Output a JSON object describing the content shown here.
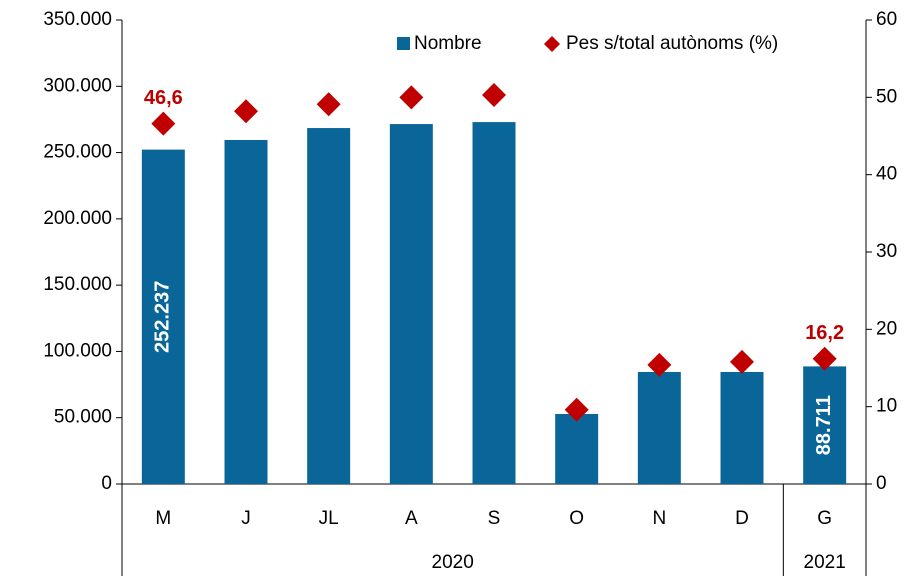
{
  "chart_data": {
    "type": "bar_diamond",
    "categories": [
      "M",
      "J",
      "JL",
      "A",
      "S",
      "O",
      "N",
      "D",
      "G"
    ],
    "groups": [
      "2020",
      "2020",
      "2020",
      "2020",
      "2020",
      "2020",
      "2020",
      "2020",
      "2021"
    ],
    "series": [
      {
        "name": "Nombre",
        "color": "#0a6698",
        "values": [
          252237,
          259500,
          268500,
          271500,
          273000,
          52800,
          84500,
          84500,
          88711
        ],
        "value_labels": [
          "252.237",
          null,
          null,
          null,
          null,
          null,
          null,
          null,
          "88.711"
        ]
      },
      {
        "name": "Pes s/total autònoms (%)",
        "color": "#c00000",
        "axis": "y2",
        "values": [
          46.6,
          48.2,
          49.1,
          50.0,
          50.3,
          9.6,
          15.4,
          15.8,
          16.2
        ],
        "value_labels": [
          "46,6",
          null,
          null,
          null,
          null,
          null,
          null,
          null,
          "16,2"
        ]
      }
    ],
    "ylim": [
      0,
      350000
    ],
    "yticks": [
      0,
      {
        "value": 50000,
        "label": "50.000"
      },
      {
        "value": 100000,
        "label": "100.000"
      },
      {
        "value": 150000,
        "label": "150.000"
      },
      {
        "value": 200000,
        "label": "200.000"
      },
      {
        "value": 250000,
        "label": "250.000"
      },
      {
        "value": 300000,
        "label": "300.000"
      },
      {
        "value": 350000,
        "label": "350.000"
      }
    ],
    "y2lim": [
      0,
      60
    ],
    "y2ticks": [
      0,
      10,
      20,
      30,
      40,
      50,
      60
    ],
    "legend": "upper right"
  }
}
